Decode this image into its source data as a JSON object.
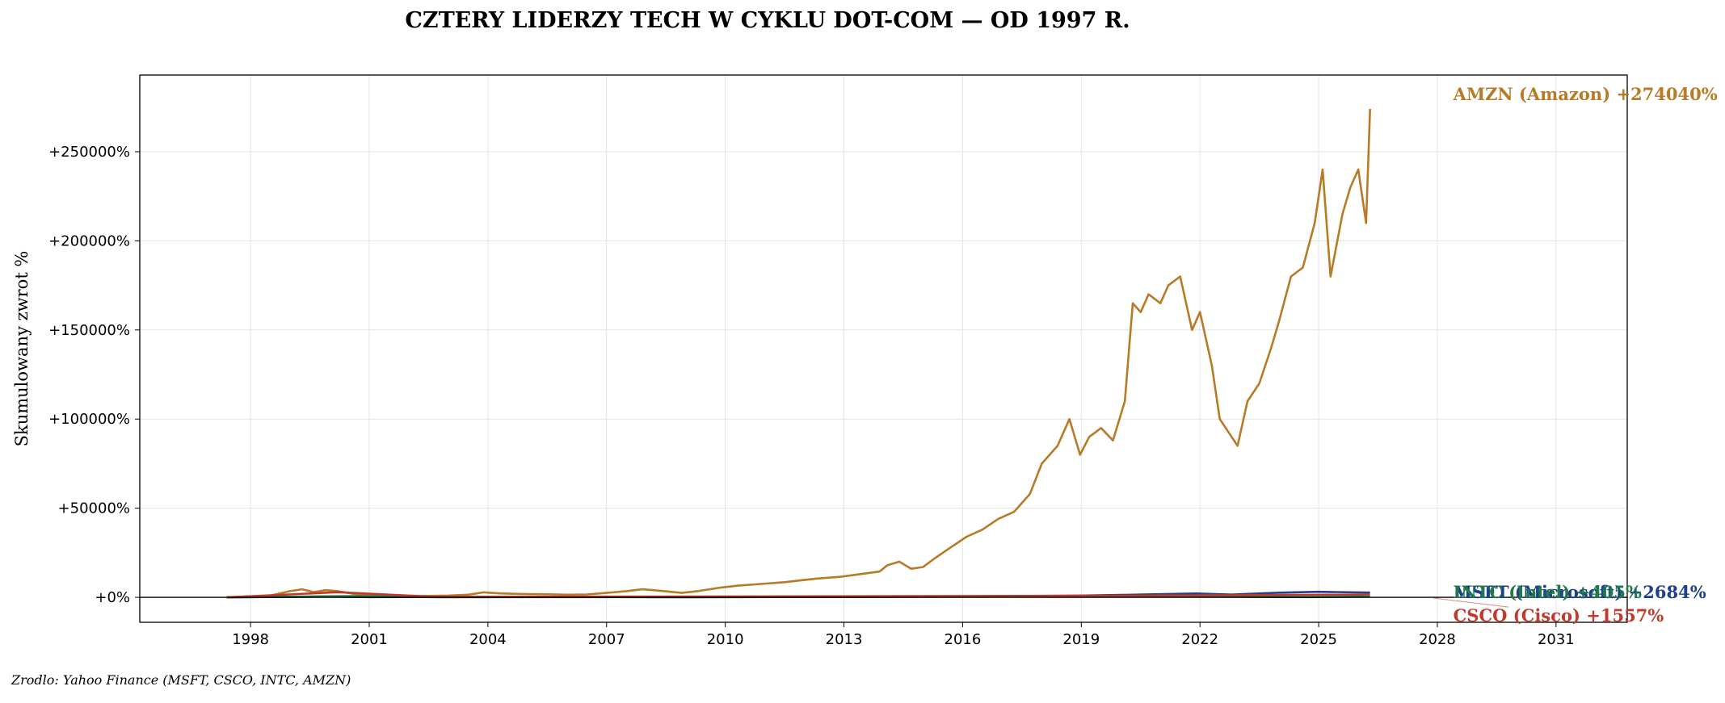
{
  "chart_data": {
    "type": "line",
    "title": "CZTERY LIDERZY TECH W CYKLU DOT-COM — OD 1997 R.",
    "ylabel": "Skumulowany zwrot %",
    "xlabel": "",
    "xlim": [
      1995.2,
      2032.8
    ],
    "ylim": [
      -14000,
      293000
    ],
    "x_ticks": [
      1998,
      2001,
      2004,
      2007,
      2010,
      2013,
      2016,
      2019,
      2022,
      2025,
      2028,
      2031
    ],
    "y_ticks": [
      0,
      50000,
      100000,
      150000,
      200000,
      250000
    ],
    "y_tick_labels": [
      "+0%",
      "+50000%",
      "+100000%",
      "+150000%",
      "+200000%",
      "+250000%"
    ],
    "grid": true,
    "zero_line": true,
    "series": [
      {
        "name": "AMZN (Amazon)",
        "color": "#b87a27",
        "end_label": "AMZN (Amazon)  +274040%",
        "x": [
          1997.4,
          1998.5,
          1999.0,
          1999.3,
          1999.6,
          1999.9,
          2000.2,
          2000.6,
          2001.0,
          2001.5,
          2002.0,
          2002.5,
          2003.0,
          2003.5,
          2003.9,
          2004.3,
          2005.0,
          2005.5,
          2006.0,
          2006.5,
          2007.0,
          2007.5,
          2007.9,
          2008.3,
          2008.9,
          2009.3,
          2009.9,
          2010.3,
          2010.9,
          2011.5,
          2011.9,
          2012.3,
          2012.9,
          2013.4,
          2013.9,
          2014.1,
          2014.4,
          2014.7,
          2015.0,
          2015.3,
          2015.7,
          2016.1,
          2016.5,
          2016.9,
          2017.3,
          2017.7,
          2018.0,
          2018.4,
          2018.7,
          2018.97,
          2019.2,
          2019.5,
          2019.8,
          2020.1,
          2020.3,
          2020.5,
          2020.7,
          2021.0,
          2021.2,
          2021.5,
          2021.8,
          2022.0,
          2022.3,
          2022.5,
          2022.8,
          2022.95,
          2023.2,
          2023.5,
          2023.8,
          2024.0,
          2024.3,
          2024.6,
          2024.9,
          2025.1,
          2025.3,
          2025.6,
          2025.8,
          2026.0,
          2026.2,
          2026.3
        ],
        "values": [
          0,
          1000,
          3500,
          4500,
          3000,
          4000,
          3500,
          2000,
          1000,
          500,
          600,
          800,
          1000,
          1500,
          2800,
          2200,
          1800,
          1700,
          1500,
          1600,
          2500,
          3500,
          4500,
          3800,
          2500,
          3500,
          5500,
          6500,
          7500,
          8500,
          9500,
          10500,
          11500,
          13000,
          14500,
          18000,
          20000,
          16000,
          17000,
          22000,
          28000,
          34000,
          38000,
          44000,
          48000,
          58000,
          75000,
          85000,
          100000,
          80000,
          90000,
          95000,
          88000,
          110000,
          165000,
          160000,
          170000,
          165000,
          175000,
          180000,
          150000,
          160000,
          130000,
          100000,
          90000,
          85000,
          110000,
          120000,
          140000,
          155000,
          180000,
          185000,
          210000,
          240000,
          180000,
          215000,
          230000,
          240000,
          210000,
          274040
        ]
      },
      {
        "name": "MSFT (Microsoft)",
        "color": "#1f3f8f",
        "end_label": "MSFT (Microsoft)  +2684%",
        "x": [
          1997.4,
          1999.9,
          2001.0,
          2003.0,
          2006.0,
          2009.0,
          2012.0,
          2015.0,
          2017.0,
          2019.0,
          2020.0,
          2021.9,
          2022.8,
          2024.0,
          2025.0,
          2026.3
        ],
        "values": [
          0,
          450,
          150,
          200,
          250,
          100,
          200,
          400,
          650,
          1000,
          1350,
          2150,
          1550,
          2600,
          3100,
          2684
        ]
      },
      {
        "name": "INTC (Intel)",
        "color": "#1f7a4a",
        "end_label": "INTC (Intel)  +405%",
        "x": [
          1997.4,
          2000.6,
          2002.8,
          2010.0,
          2020.0,
          2021.5,
          2024.7,
          2026.3
        ],
        "values": [
          0,
          700,
          80,
          150,
          550,
          500,
          150,
          405
        ]
      },
      {
        "name": "CSCO (Cisco)",
        "color": "#c0392b",
        "end_label": "CSCO (Cisco)  +1557%",
        "x": [
          1997.4,
          2000.2,
          2002.7,
          2010.0,
          2020.0,
          2026.3
        ],
        "values": [
          0,
          2900,
          250,
          500,
          900,
          1557
        ]
      }
    ],
    "source_note": "Zrodlo: Yahoo Finance (MSFT, CSCO, INTC, AMZN)"
  }
}
